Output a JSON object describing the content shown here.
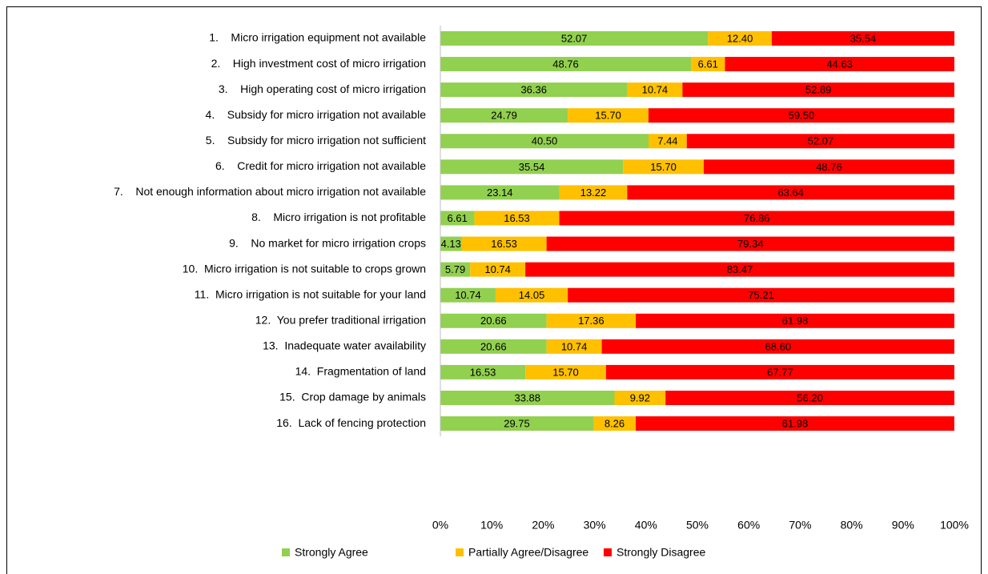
{
  "chart_data": {
    "type": "stacked-bar-horizontal",
    "categories": [
      "1.    Micro irrigation equipment not available",
      "2.    High investment cost of micro irrigation",
      "3.    High operating cost of micro irrigation",
      "4.    Subsidy for micro irrigation not available",
      "5.    Subsidy for micro irrigation not sufficient",
      "6.    Credit for micro irrigation not available",
      "7.    Not enough information about micro irrigation not available",
      "8.    Micro irrigation is not profitable",
      "9.    No market for micro irrigation crops",
      "10.  Micro irrigation is not suitable to crops grown",
      "11.  Micro irrigation is not suitable for your land",
      "12.  You prefer traditional irrigation",
      "13.  Inadequate water availability",
      "14.  Fragmentation of land",
      "15.  Crop damage by animals",
      "16.  Lack of fencing protection"
    ],
    "series": [
      {
        "name": "Strongly Agree",
        "color": "#92d050",
        "values": [
          52.07,
          48.76,
          36.36,
          24.79,
          40.5,
          35.54,
          23.14,
          6.61,
          4.13,
          5.79,
          10.74,
          20.66,
          20.66,
          16.53,
          33.88,
          29.75
        ],
        "value_labels": [
          "52.07",
          "48.76",
          "36.36",
          "24.79",
          "40.50",
          "35.54",
          "23.14",
          "6.61",
          "4.13",
          "5.79",
          "10.74",
          "20.66",
          "20.66",
          "16.53",
          "33.88",
          "29.75"
        ]
      },
      {
        "name": "Partially Agree/Disagree",
        "color": "#ffc000",
        "values": [
          12.4,
          6.61,
          10.74,
          15.7,
          7.44,
          15.7,
          13.22,
          16.53,
          16.53,
          10.74,
          14.05,
          17.36,
          10.74,
          15.7,
          9.92,
          8.26
        ],
        "value_labels": [
          "12.40",
          "6.61",
          "10.74",
          "15.70",
          "7.44",
          "15.70",
          "13.22",
          "16.53",
          "16.53",
          "10.74",
          "14.05",
          "17.36",
          "10.74",
          "15.70",
          "9.92",
          "8.26"
        ]
      },
      {
        "name": "Strongly Disagree",
        "color": "#ff0000",
        "values": [
          35.54,
          44.63,
          52.89,
          59.5,
          52.07,
          48.76,
          63.64,
          76.86,
          79.34,
          83.47,
          75.21,
          61.98,
          68.6,
          67.77,
          56.2,
          61.98
        ],
        "value_labels": [
          "35.54",
          "44.63",
          "52.89",
          "59.50",
          "52.07",
          "48.76",
          "63.64",
          "76.86",
          "79.34",
          "83.47",
          "75.21",
          "61.98",
          "68.60",
          "67.77",
          "56.20",
          "61.98"
        ]
      }
    ],
    "xlim": [
      0,
      100
    ],
    "xticks": [
      {
        "value": 0,
        "label": "0%"
      },
      {
        "value": 10,
        "label": "10%"
      },
      {
        "value": 20,
        "label": "20%"
      },
      {
        "value": 30,
        "label": "30%"
      },
      {
        "value": 40,
        "label": "40%"
      },
      {
        "value": 50,
        "label": "50%"
      },
      {
        "value": 60,
        "label": "60%"
      },
      {
        "value": 70,
        "label": "70%"
      },
      {
        "value": 80,
        "label": "80%"
      },
      {
        "value": 90,
        "label": "90%"
      },
      {
        "value": 100,
        "label": "100%"
      }
    ],
    "legend": "bottom"
  }
}
